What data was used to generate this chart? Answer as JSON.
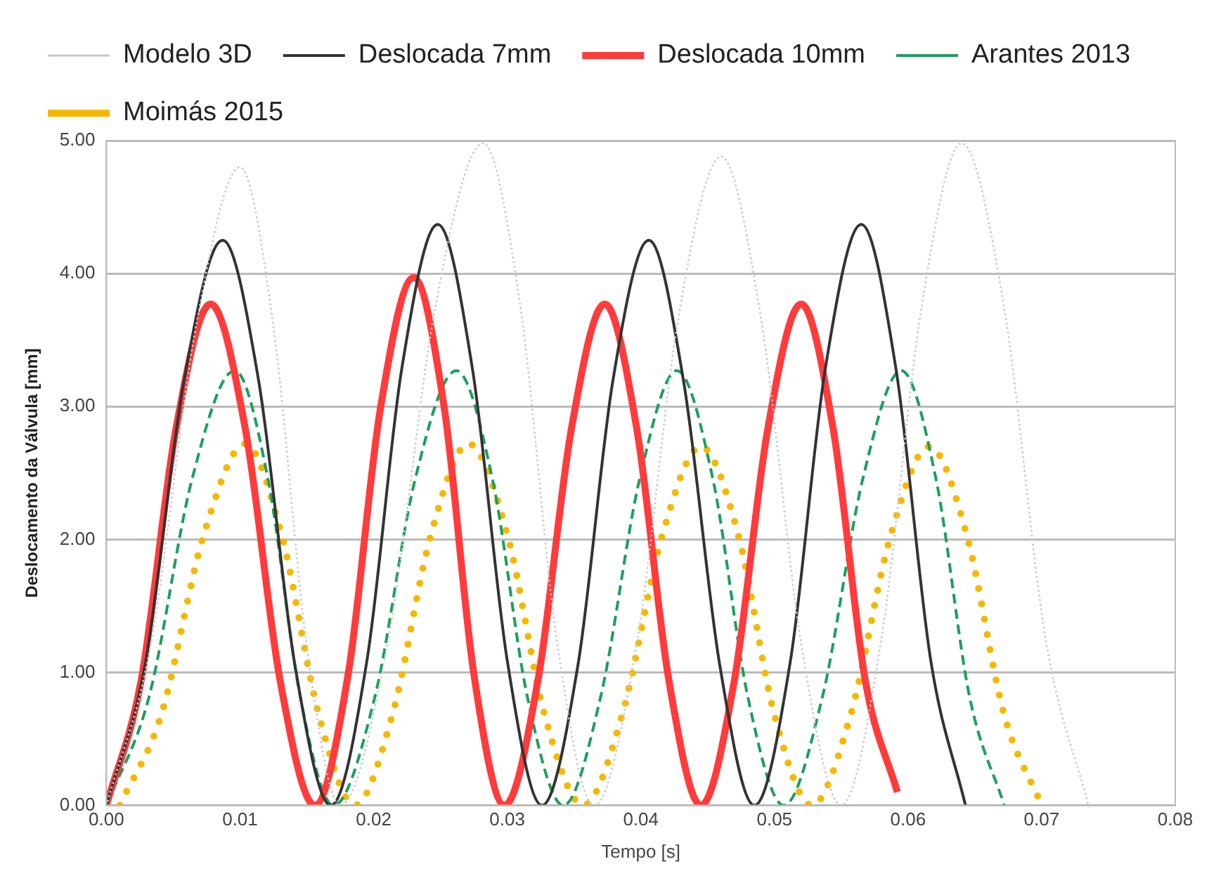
{
  "chart_data": {
    "type": "line",
    "xlabel": "Tempo [s]",
    "ylabel": "Deslocamento da Válvula [mm]",
    "xlim": [
      0,
      0.08
    ],
    "xticks": [
      {
        "value": 0,
        "label": "0.00"
      },
      {
        "value": 0.01,
        "label": "0.01"
      },
      {
        "value": 0.02,
        "label": "0.02"
      },
      {
        "value": 0.03,
        "label": "0.03"
      },
      {
        "value": 0.04,
        "label": "0.04"
      },
      {
        "value": 0.05,
        "label": "0.05"
      },
      {
        "value": 0.06,
        "label": "0.06"
      },
      {
        "value": 0.07,
        "label": "0.07"
      },
      {
        "value": 0.08,
        "label": "0.08"
      }
    ],
    "ylim": [
      0,
      5
    ],
    "yticks": [
      {
        "value": 0,
        "label": "0.00"
      },
      {
        "value": 1,
        "label": "1.00"
      },
      {
        "value": 2,
        "label": "2.00"
      },
      {
        "value": 3,
        "label": "3.00"
      },
      {
        "value": 4,
        "label": "4.00"
      },
      {
        "value": 5,
        "label": "5.00"
      }
    ],
    "grid": "y",
    "legend": "top",
    "marker": "none",
    "series": [
      {
        "name": "Modelo 3D",
        "color": "#c8c8c8",
        "line_style": "dotted",
        "x": [
          0,
          0.0033,
          0.0067,
          0.01,
          0.0125,
          0.015,
          0.0175,
          0.0211,
          0.0246,
          0.0282,
          0.031,
          0.0337,
          0.0365,
          0.0397,
          0.0428,
          0.046,
          0.049,
          0.052,
          0.055,
          0.058,
          0.061,
          0.064,
          0.0672,
          0.0703,
          0.0735
        ],
        "values": [
          0,
          1.2,
          3.6,
          4.8,
          3.6,
          1.2,
          0,
          1.25,
          3.74,
          4.98,
          3.74,
          1.25,
          0,
          1.22,
          3.66,
          4.88,
          3.66,
          1.22,
          0,
          1.25,
          3.74,
          4.98,
          3.74,
          1.25,
          0
        ]
      },
      {
        "name": "Deslocada 7mm",
        "color": "#333333",
        "line_style": "solid",
        "x": [
          0,
          0.0029,
          0.0058,
          0.0087,
          0.0114,
          0.0141,
          0.0168,
          0.0195,
          0.0221,
          0.0248,
          0.0274,
          0.03,
          0.0326,
          0.0353,
          0.0379,
          0.0406,
          0.0432,
          0.0459,
          0.0485,
          0.0512,
          0.0538,
          0.0565,
          0.0591,
          0.0617,
          0.0643
        ],
        "values": [
          0,
          1.06,
          3.19,
          4.25,
          3.19,
          1.06,
          0,
          1.09,
          3.28,
          4.37,
          3.28,
          1.09,
          0,
          1.06,
          3.19,
          4.25,
          3.19,
          1.06,
          0,
          1.09,
          3.28,
          4.37,
          3.28,
          1.09,
          0
        ]
      },
      {
        "name": "Deslocada 10mm",
        "color": "#ff3b3b",
        "line_style": "solid",
        "x": [
          0,
          0.0026,
          0.0052,
          0.0078,
          0.0104,
          0.013,
          0.0156,
          0.0181,
          0.0205,
          0.023,
          0.0253,
          0.0275,
          0.0298,
          0.0323,
          0.0348,
          0.0373,
          0.0397,
          0.0421,
          0.0445,
          0.047,
          0.0495,
          0.052,
          0.0544,
          0.0568,
          0.0592
        ],
        "values": [
          0,
          0.94,
          2.83,
          3.77,
          2.83,
          0.94,
          0,
          0.99,
          2.98,
          3.97,
          2.98,
          0.99,
          0,
          0.94,
          2.83,
          3.77,
          2.83,
          0.94,
          0,
          0.94,
          2.83,
          3.77,
          2.83,
          0.94,
          0.1
        ]
      },
      {
        "name": "Arantes 2013",
        "color": "#1aa05a",
        "line_style": "dashed",
        "x": [
          0,
          0.0032,
          0.0064,
          0.0096,
          0.0121,
          0.0145,
          0.017,
          0.0201,
          0.0231,
          0.0262,
          0.0289,
          0.0315,
          0.0342,
          0.037,
          0.0399,
          0.0427,
          0.0454,
          0.048,
          0.0507,
          0.0536,
          0.0566,
          0.0595,
          0.0621,
          0.0646,
          0.0672
        ],
        "values": [
          0,
          0.82,
          2.45,
          3.27,
          2.45,
          0.82,
          0,
          0.82,
          2.45,
          3.27,
          2.45,
          0.82,
          0,
          0.82,
          2.45,
          3.27,
          2.45,
          0.82,
          0,
          0.82,
          2.45,
          3.27,
          2.45,
          0.82,
          0
        ]
      },
      {
        "name": "Moimás 2015",
        "color": "#f5b800",
        "line_style": "dotted",
        "x": [
          0.001,
          0.0041,
          0.0073,
          0.0104,
          0.0131,
          0.0159,
          0.0186,
          0.0214,
          0.0243,
          0.0271,
          0.03,
          0.0328,
          0.0357,
          0.0386,
          0.0416,
          0.0445,
          0.0473,
          0.05,
          0.0528,
          0.0557,
          0.0587,
          0.0616,
          0.0644,
          0.0672,
          0.07
        ],
        "values": [
          0,
          0.68,
          2.04,
          2.72,
          2.04,
          0.68,
          0,
          0.68,
          2.04,
          2.72,
          2.04,
          0.68,
          0,
          0.68,
          2.03,
          2.7,
          2.03,
          0.68,
          0,
          0.68,
          2.03,
          2.7,
          2.03,
          0.68,
          0
        ]
      }
    ]
  }
}
